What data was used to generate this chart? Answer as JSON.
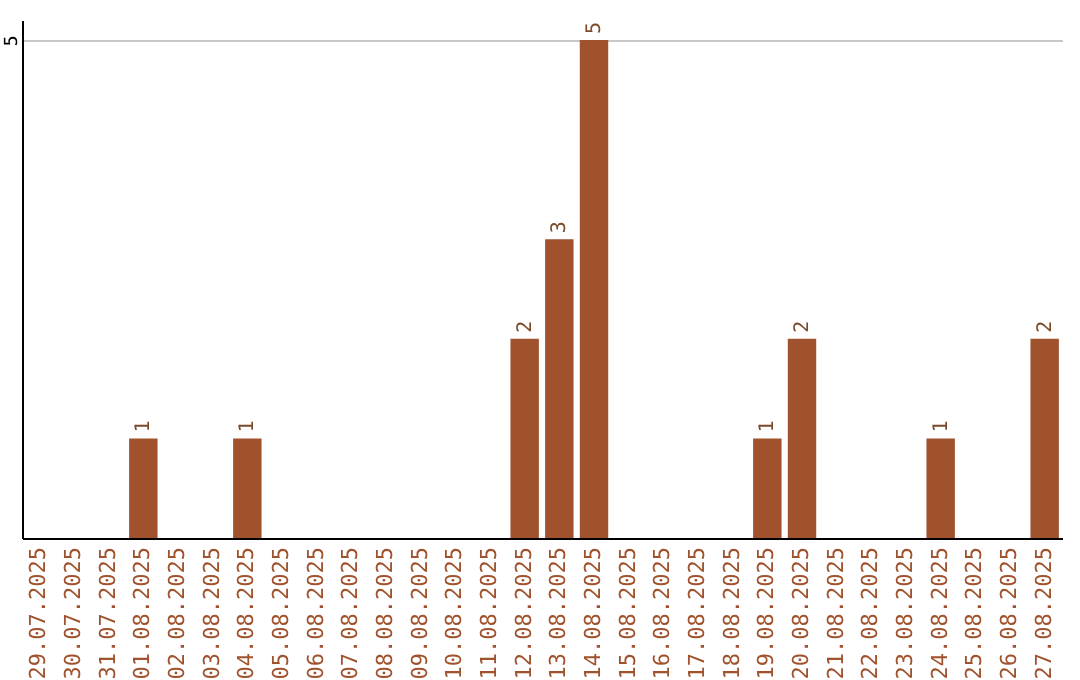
{
  "chart_data": {
    "type": "bar",
    "categories": [
      "29.07.2025",
      "30.07.2025",
      "31.07.2025",
      "01.08.2025",
      "02.08.2025",
      "03.08.2025",
      "04.08.2025",
      "05.08.2025",
      "06.08.2025",
      "07.08.2025",
      "08.08.2025",
      "09.08.2025",
      "10.08.2025",
      "11.08.2025",
      "12.08.2025",
      "13.08.2025",
      "14.08.2025",
      "15.08.2025",
      "16.08.2025",
      "17.08.2025",
      "18.08.2025",
      "19.08.2025",
      "20.08.2025",
      "21.08.2025",
      "22.08.2025",
      "23.08.2025",
      "24.08.2025",
      "25.08.2025",
      "26.08.2025",
      "27.08.2025"
    ],
    "values": [
      0,
      0,
      0,
      1,
      0,
      0,
      1,
      0,
      0,
      0,
      0,
      0,
      0,
      0,
      2,
      3,
      5,
      0,
      0,
      0,
      0,
      1,
      2,
      0,
      0,
      0,
      1,
      0,
      0,
      2
    ],
    "value_labels": [
      null,
      null,
      null,
      "1",
      null,
      null,
      "1",
      null,
      null,
      null,
      null,
      null,
      null,
      null,
      "2",
      "3",
      "5",
      null,
      null,
      null,
      null,
      "1",
      "2",
      null,
      null,
      null,
      "1",
      null,
      null,
      "2"
    ],
    "color": "#a0522d",
    "ylim": [
      0,
      5.2
    ],
    "yticks": [
      5
    ],
    "grid": "y"
  }
}
